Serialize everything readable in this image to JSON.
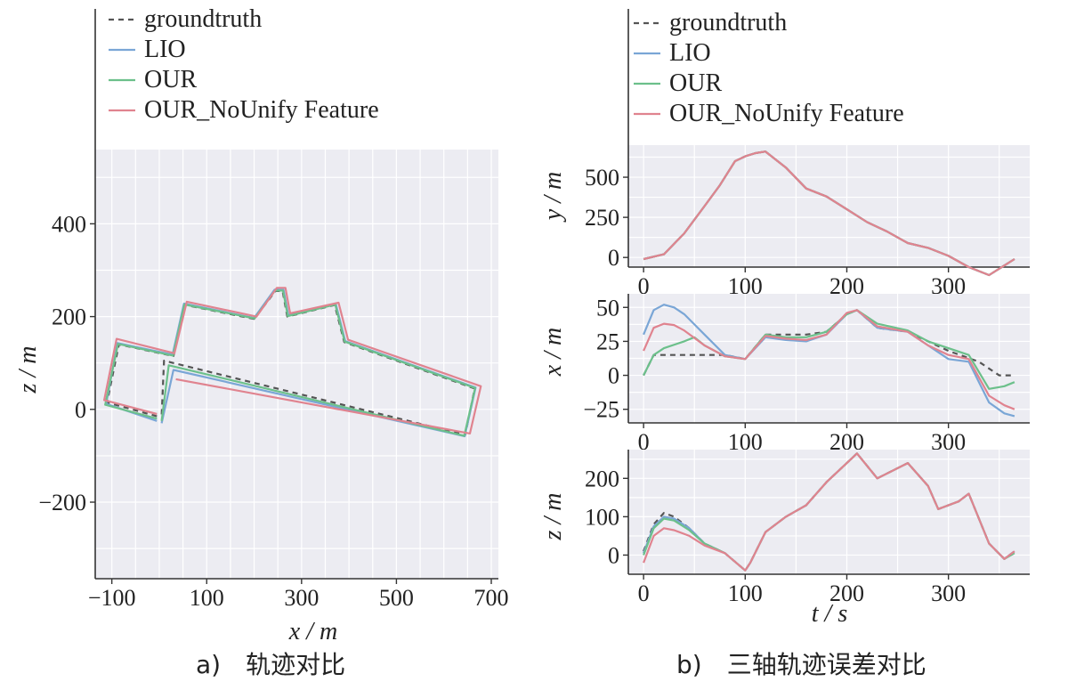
{
  "colors": {
    "groundtruth": "#555555",
    "LIO": "#7aa6d6",
    "OUR": "#6cc08b",
    "OUR_NoUnify": "#e0838f",
    "panel_bg": "#ececf2",
    "grid": "#ffffff"
  },
  "legend": [
    "groundtruth",
    "LIO",
    "OUR",
    "OUR_NoUnify Feature"
  ],
  "captions": {
    "a": "a)　轨迹对比",
    "b": "b)　三轴轨迹误差对比"
  },
  "chart_data": [
    {
      "type": "line",
      "xlabel": "x / m",
      "ylabel": "z / m",
      "xlim": [
        -135,
        715
      ],
      "ylim": [
        -365,
        560
      ],
      "xticks": [
        -100,
        100,
        300,
        500,
        700
      ],
      "yticks": [
        -200,
        0,
        200,
        400
      ],
      "grid": true,
      "series": [
        {
          "name": "groundtruth",
          "style": "dashed",
          "points": [
            [
              -5,
              -15
            ],
            [
              -110,
              15
            ],
            [
              -85,
              140
            ],
            [
              30,
              115
            ],
            [
              55,
              225
            ],
            [
              200,
              195
            ],
            [
              245,
              255
            ],
            [
              260,
              255
            ],
            [
              270,
              200
            ],
            [
              370,
              225
            ],
            [
              390,
              145
            ],
            [
              665,
              45
            ],
            [
              645,
              -55
            ],
            [
              10,
              105
            ],
            [
              5,
              -15
            ]
          ]
        },
        {
          "name": "LIO",
          "points": [
            [
              -5,
              -25
            ],
            [
              -112,
              12
            ],
            [
              -88,
              143
            ],
            [
              28,
              118
            ],
            [
              52,
              228
            ],
            [
              200,
              197
            ],
            [
              243,
              258
            ],
            [
              262,
              258
            ],
            [
              272,
              203
            ],
            [
              372,
              228
            ],
            [
              392,
              147
            ],
            [
              667,
              47
            ],
            [
              644,
              -58
            ],
            [
              30,
              85
            ],
            [
              5,
              -30
            ]
          ]
        },
        {
          "name": "OUR",
          "points": [
            [
              -5,
              -20
            ],
            [
              -114,
              10
            ],
            [
              -87,
              141
            ],
            [
              29,
              116
            ],
            [
              53,
              226
            ],
            [
              201,
              196
            ],
            [
              244,
              256
            ],
            [
              261,
              256
            ],
            [
              271,
              201
            ],
            [
              371,
              226
            ],
            [
              391,
              146
            ],
            [
              666,
              46
            ],
            [
              643,
              -57
            ],
            [
              20,
              95
            ],
            [
              5,
              -25
            ]
          ]
        },
        {
          "name": "OUR_NoUnify Feature",
          "points": [
            [
              -5,
              -10
            ],
            [
              -116,
              20
            ],
            [
              -90,
              152
            ],
            [
              32,
              121
            ],
            [
              58,
              232
            ],
            [
              205,
              200
            ],
            [
              248,
              262
            ],
            [
              266,
              262
            ],
            [
              276,
              207
            ],
            [
              378,
              230
            ],
            [
              398,
              150
            ],
            [
              678,
              50
            ],
            [
              655,
              -52
            ],
            [
              35,
              65
            ],
            [
              35,
              65
            ]
          ]
        }
      ]
    },
    {
      "type": "line",
      "xlabel": "",
      "ylabel": "y / m",
      "xlim": [
        -15,
        380
      ],
      "ylim": [
        -60,
        700
      ],
      "xticks": [
        0,
        100,
        200,
        300
      ],
      "yticks": [
        0,
        250,
        500
      ],
      "grid": true,
      "series": [
        {
          "name": "groundtruth",
          "x": [
            0,
            20,
            40,
            60,
            75,
            90,
            100,
            110,
            120,
            140,
            160,
            180,
            200,
            220,
            240,
            260,
            280,
            300,
            320,
            340,
            355,
            365
          ],
          "y": [
            -10,
            20,
            150,
            320,
            450,
            600,
            630,
            650,
            660,
            560,
            430,
            380,
            300,
            220,
            160,
            90,
            60,
            10,
            -60,
            -110,
            -50,
            -10
          ]
        },
        {
          "name": "LIO",
          "x": [
            0,
            20,
            40,
            60,
            75,
            90,
            100,
            110,
            120,
            140,
            160,
            180,
            200,
            220,
            240,
            260,
            280,
            300,
            320,
            340,
            355,
            365
          ],
          "y": [
            -10,
            20,
            150,
            320,
            450,
            600,
            630,
            650,
            660,
            560,
            430,
            380,
            300,
            220,
            160,
            90,
            60,
            10,
            -60,
            -110,
            -50,
            -10
          ]
        },
        {
          "name": "OUR",
          "x": [
            0,
            20,
            40,
            60,
            75,
            90,
            100,
            110,
            120,
            140,
            160,
            180,
            200,
            220,
            240,
            260,
            280,
            300,
            320,
            340,
            355,
            365
          ],
          "y": [
            -10,
            20,
            150,
            320,
            450,
            600,
            630,
            650,
            660,
            560,
            430,
            380,
            300,
            220,
            160,
            90,
            60,
            10,
            -60,
            -110,
            -50,
            -10
          ]
        },
        {
          "name": "OUR_NoUnify Feature",
          "x": [
            0,
            20,
            40,
            60,
            75,
            90,
            100,
            110,
            120,
            140,
            160,
            180,
            200,
            220,
            240,
            260,
            280,
            300,
            320,
            340,
            355,
            365
          ],
          "y": [
            -10,
            20,
            150,
            320,
            450,
            600,
            630,
            650,
            660,
            560,
            430,
            380,
            300,
            220,
            160,
            90,
            60,
            10,
            -60,
            -110,
            -50,
            -10
          ]
        }
      ]
    },
    {
      "type": "line",
      "xlabel": "",
      "ylabel": "x / m",
      "xlim": [
        -15,
        380
      ],
      "ylim": [
        -35,
        60
      ],
      "xticks": [
        0,
        100,
        200,
        300
      ],
      "yticks": [
        -25,
        0,
        25,
        50
      ],
      "grid": true,
      "series": [
        {
          "name": "groundtruth",
          "style": "dashed",
          "x": [
            0,
            10,
            20,
            40,
            60,
            80,
            100,
            120,
            140,
            160,
            180,
            200,
            210,
            230,
            260,
            280,
            300,
            330,
            350,
            365
          ],
          "y": [
            0,
            15,
            15,
            15,
            15,
            15,
            12,
            30,
            30,
            30,
            32,
            45,
            48,
            35,
            32,
            25,
            18,
            10,
            0,
            0
          ]
        },
        {
          "name": "LIO",
          "x": [
            0,
            10,
            20,
            30,
            40,
            60,
            80,
            100,
            120,
            140,
            160,
            180,
            200,
            210,
            230,
            260,
            280,
            300,
            320,
            340,
            355,
            365
          ],
          "y": [
            30,
            48,
            52,
            50,
            45,
            30,
            15,
            12,
            28,
            26,
            25,
            30,
            45,
            48,
            35,
            32,
            22,
            12,
            10,
            -20,
            -28,
            -30
          ]
        },
        {
          "name": "OUR",
          "x": [
            0,
            10,
            20,
            40,
            50,
            60,
            80,
            100,
            120,
            140,
            160,
            180,
            200,
            210,
            230,
            260,
            280,
            300,
            320,
            340,
            355,
            365
          ],
          "y": [
            0,
            15,
            20,
            25,
            28,
            22,
            14,
            12,
            30,
            28,
            28,
            32,
            45,
            48,
            38,
            33,
            25,
            20,
            15,
            -10,
            -8,
            -5
          ]
        },
        {
          "name": "OUR_NoUnify Feature",
          "x": [
            0,
            10,
            20,
            30,
            40,
            60,
            80,
            100,
            120,
            140,
            160,
            180,
            200,
            210,
            230,
            260,
            280,
            300,
            320,
            340,
            355,
            365
          ],
          "y": [
            18,
            35,
            38,
            37,
            33,
            22,
            14,
            12,
            29,
            27,
            26,
            30,
            46,
            48,
            36,
            32,
            22,
            15,
            12,
            -15,
            -22,
            -25
          ]
        }
      ]
    },
    {
      "type": "line",
      "xlabel": "t / s",
      "ylabel": "z / m",
      "xlim": [
        -15,
        380
      ],
      "ylim": [
        -50,
        275
      ],
      "xticks": [
        0,
        100,
        200,
        300
      ],
      "yticks": [
        0,
        100,
        200
      ],
      "grid": true,
      "series": [
        {
          "name": "groundtruth",
          "style": "dashed",
          "x": [
            0,
            10,
            20,
            30,
            45,
            60,
            80,
            100,
            105,
            120,
            140,
            160,
            180,
            200,
            210,
            230,
            260,
            280,
            290,
            310,
            320,
            340,
            355,
            365
          ],
          "y": [
            10,
            80,
            110,
            100,
            70,
            30,
            5,
            -40,
            -20,
            60,
            100,
            130,
            190,
            240,
            265,
            200,
            240,
            180,
            120,
            140,
            160,
            30,
            -10,
            10
          ]
        },
        {
          "name": "LIO",
          "x": [
            0,
            10,
            20,
            30,
            45,
            60,
            80,
            100,
            105,
            120,
            140,
            160,
            180,
            200,
            210,
            230,
            260,
            280,
            290,
            310,
            320,
            340,
            355,
            365
          ],
          "y": [
            5,
            75,
            100,
            95,
            70,
            30,
            5,
            -40,
            -20,
            60,
            100,
            130,
            190,
            240,
            265,
            200,
            240,
            180,
            120,
            140,
            160,
            30,
            -10,
            10
          ]
        },
        {
          "name": "OUR",
          "x": [
            0,
            10,
            20,
            30,
            45,
            60,
            80,
            100,
            105,
            120,
            140,
            160,
            180,
            200,
            210,
            230,
            260,
            280,
            290,
            310,
            320,
            340,
            355,
            365
          ],
          "y": [
            0,
            70,
            95,
            90,
            65,
            30,
            5,
            -40,
            -20,
            60,
            100,
            130,
            190,
            240,
            265,
            200,
            240,
            180,
            120,
            140,
            160,
            30,
            -10,
            5
          ]
        },
        {
          "name": "OUR_NoUnify Feature",
          "x": [
            0,
            10,
            20,
            30,
            45,
            60,
            80,
            100,
            105,
            120,
            140,
            160,
            180,
            200,
            210,
            230,
            260,
            280,
            290,
            310,
            320,
            340,
            355,
            365
          ],
          "y": [
            -20,
            50,
            70,
            65,
            50,
            25,
            5,
            -40,
            -20,
            60,
            100,
            130,
            190,
            240,
            265,
            200,
            240,
            180,
            120,
            140,
            160,
            30,
            -10,
            10
          ]
        }
      ]
    }
  ]
}
